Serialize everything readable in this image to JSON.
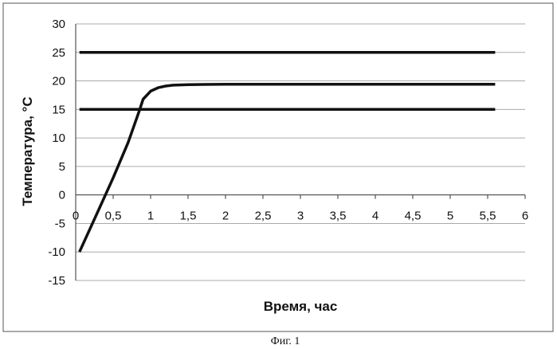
{
  "chart_data": {
    "type": "line",
    "xlabel": "Время, час",
    "ylabel": "Температура, °С",
    "xlim": [
      0,
      6
    ],
    "ylim": [
      -15,
      30
    ],
    "x_ticks": [
      "0",
      "0,5",
      "1",
      "1,5",
      "2",
      "2,5",
      "3",
      "3,5",
      "4",
      "4,5",
      "5",
      "5,5",
      "6"
    ],
    "y_ticks": [
      "30",
      "25",
      "20",
      "15",
      "10",
      "5",
      "0",
      "-5",
      "-10",
      "-15"
    ],
    "x_tick_values": [
      0,
      0.5,
      1,
      1.5,
      2,
      2.5,
      3,
      3.5,
      4,
      4.5,
      5,
      5.5,
      6
    ],
    "y_tick_values": [
      30,
      25,
      20,
      15,
      10,
      5,
      0,
      -5,
      -10,
      -15
    ],
    "grid": "horizontal",
    "legend": "none",
    "series": [
      {
        "x": [
          0.05,
          5.6
        ],
        "y": [
          25,
          25
        ]
      },
      {
        "x": [
          0.05,
          5.6
        ],
        "y": [
          15,
          15
        ]
      },
      {
        "x": [
          0.05,
          0.3,
          0.5,
          0.7,
          0.85,
          0.9,
          1.0,
          1.1,
          1.2,
          1.3,
          1.5,
          2.0,
          3.0,
          4.0,
          5.0,
          5.6
        ],
        "y": [
          -10,
          -2.8,
          3.0,
          9.2,
          14.8,
          16.8,
          18.2,
          18.8,
          19.1,
          19.25,
          19.35,
          19.4,
          19.4,
          19.4,
          19.4,
          19.4
        ]
      }
    ]
  },
  "caption": "Фиг. 1"
}
